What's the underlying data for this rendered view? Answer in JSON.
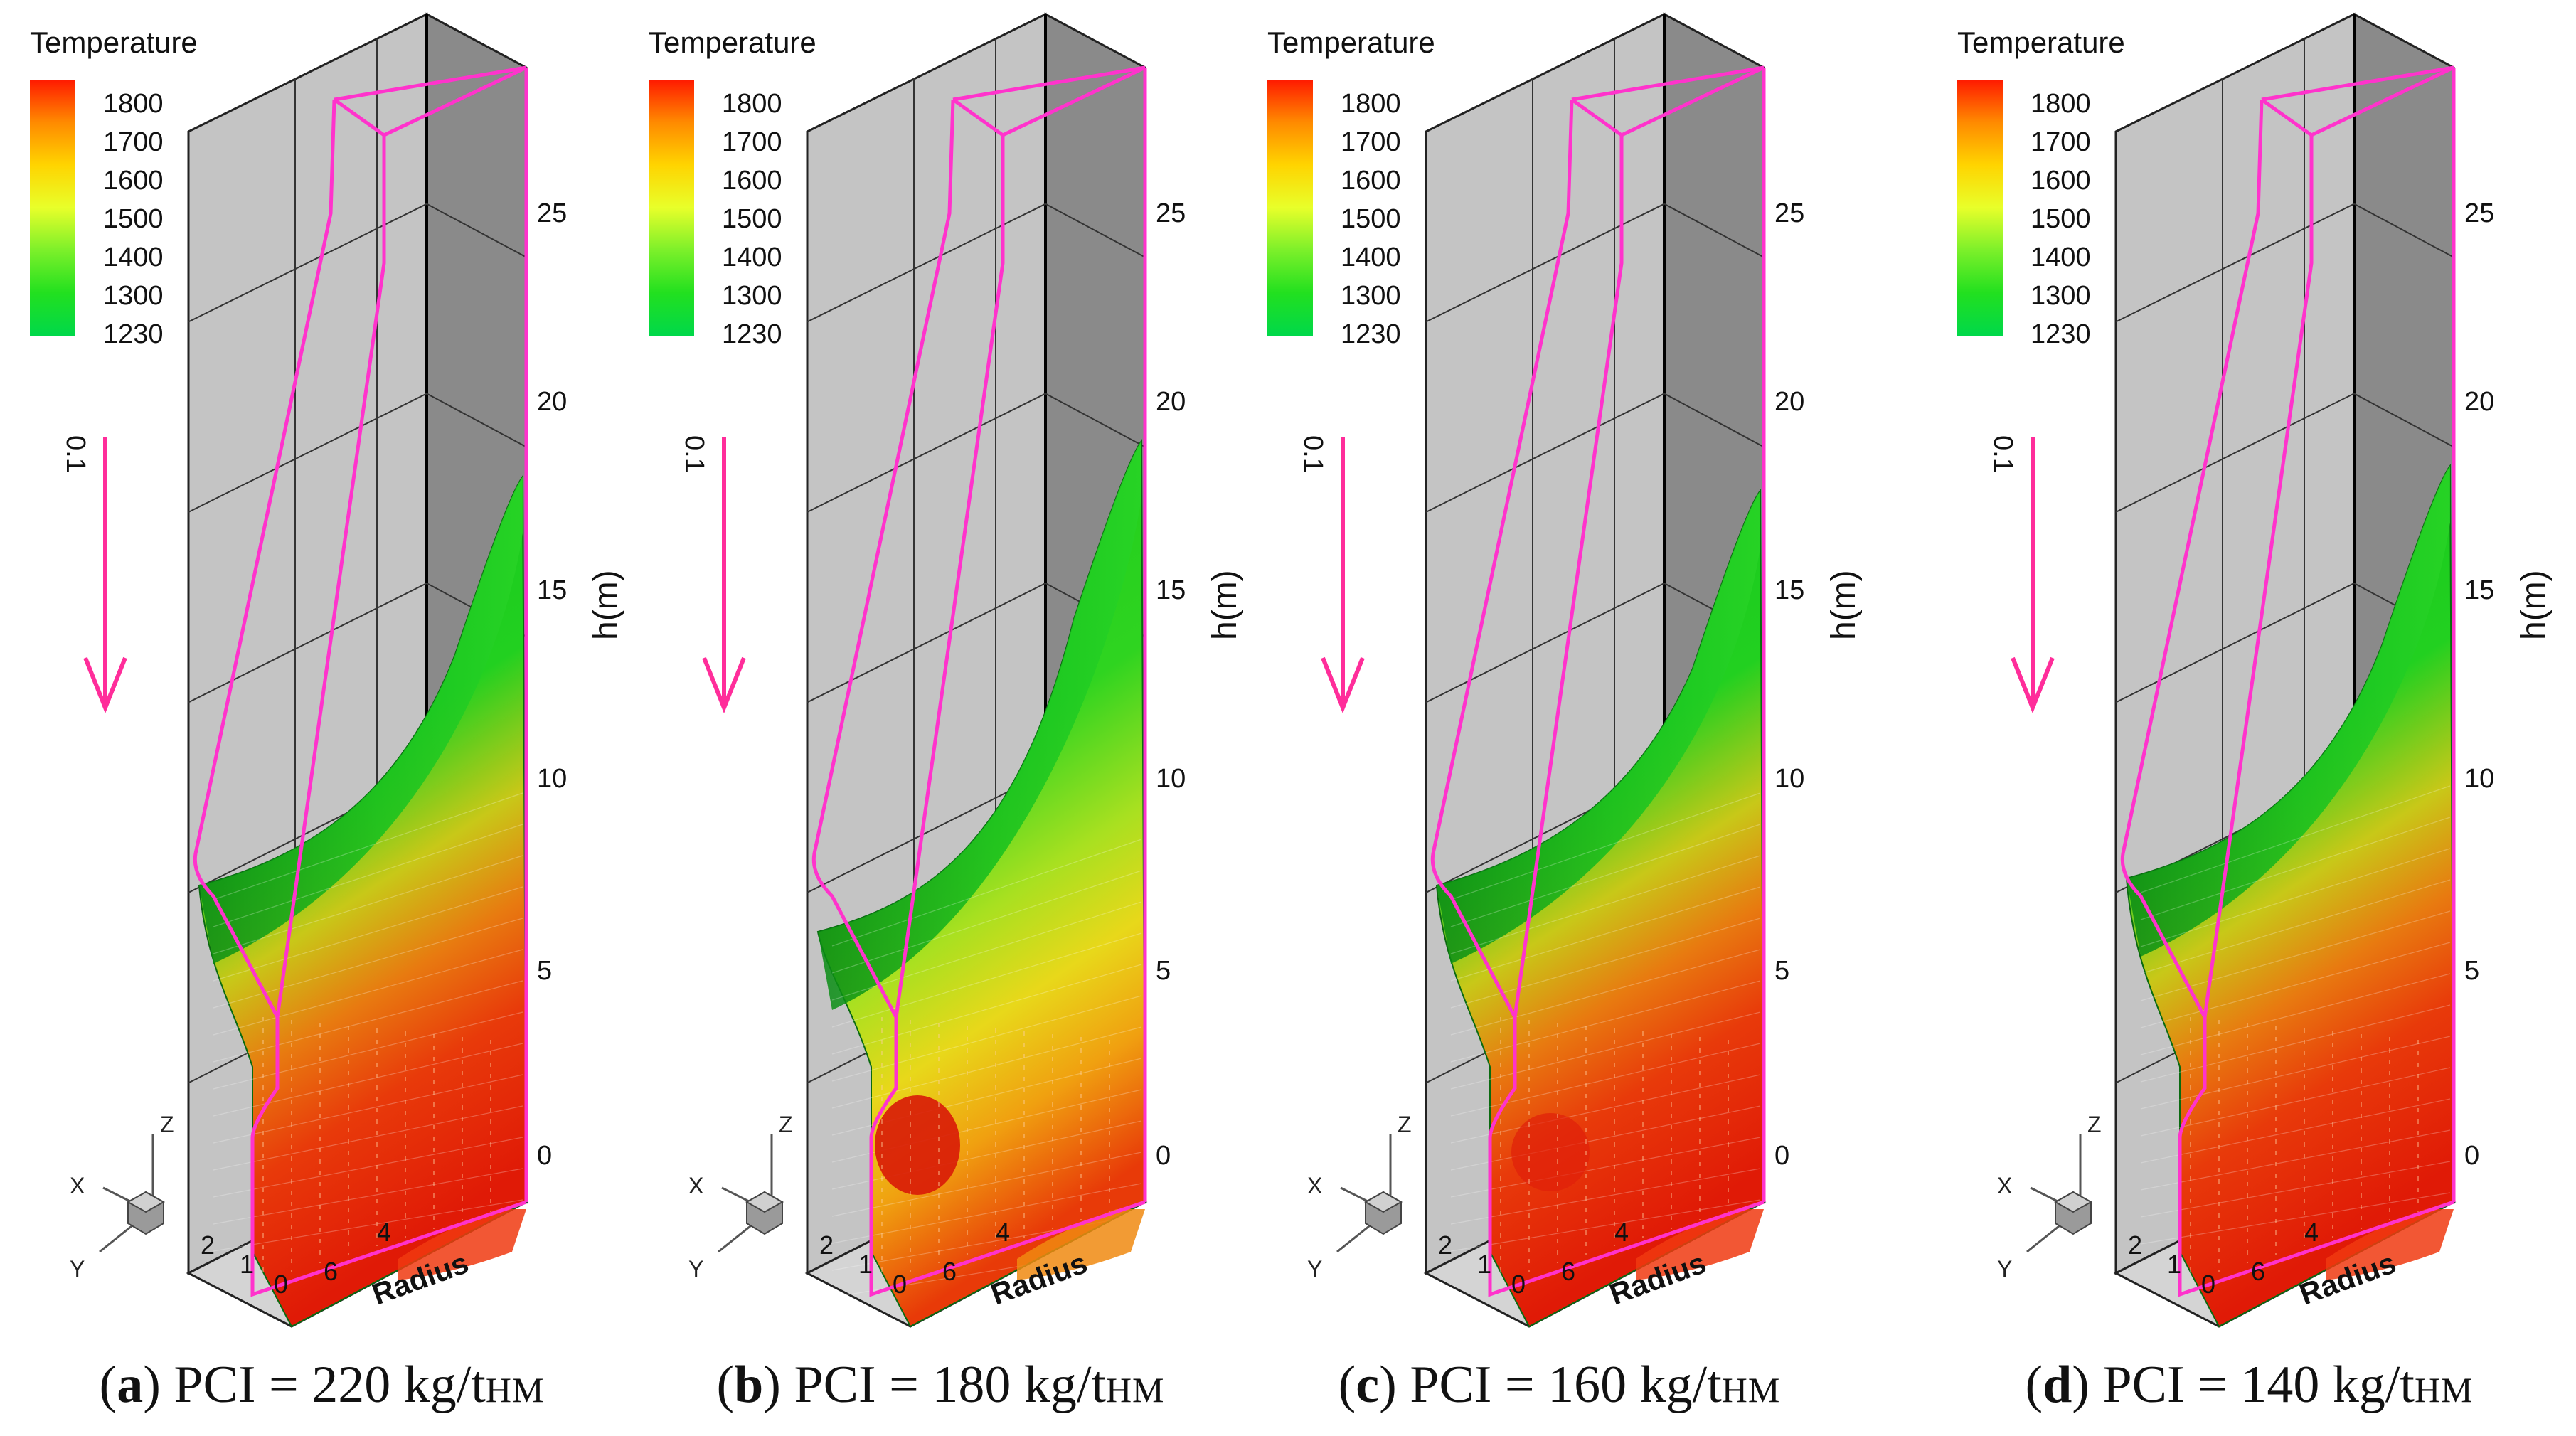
{
  "figure": {
    "panels": [
      {
        "letter": "a",
        "caption_text": "PCI = 220 kg/t",
        "caption_sub": "HM",
        "legend_title": "Temperature",
        "legend_ticks": [
          "1800",
          "1700",
          "1600",
          "1500",
          "1400",
          "1300",
          "1230"
        ],
        "arrow_label": "0.1",
        "axis_label": "h(m)",
        "radius_label": "Radius",
        "h_ticks": [
          "25",
          "20",
          "15",
          "10",
          "5",
          "0"
        ],
        "r_ticks": [
          "2",
          "1",
          "0",
          "6",
          "4"
        ],
        "triad": {
          "z": "Z",
          "x": "X",
          "y": "Y"
        }
      },
      {
        "letter": "b",
        "caption_text": "PCI = 180 kg/t",
        "caption_sub": "HM",
        "legend_title": "Temperature",
        "legend_ticks": [
          "1800",
          "1700",
          "1600",
          "1500",
          "1400",
          "1300",
          "1230"
        ],
        "arrow_label": "0.1",
        "axis_label": "h(m)",
        "radius_label": "Radius",
        "h_ticks": [
          "25",
          "20",
          "15",
          "10",
          "5",
          "0"
        ],
        "r_ticks": [
          "2",
          "1",
          "0",
          "6",
          "4"
        ],
        "triad": {
          "z": "Z",
          "x": "X",
          "y": "Y"
        }
      },
      {
        "letter": "c",
        "caption_text": "PCI = 160 kg/t",
        "caption_sub": "HM",
        "legend_title": "Temperature",
        "legend_ticks": [
          "1800",
          "1700",
          "1600",
          "1500",
          "1400",
          "1300",
          "1230"
        ],
        "arrow_label": "0.1",
        "axis_label": "h(m)",
        "radius_label": "Radius",
        "h_ticks": [
          "25",
          "20",
          "15",
          "10",
          "5",
          "0"
        ],
        "r_ticks": [
          "2",
          "1",
          "0",
          "6",
          "4"
        ],
        "triad": {
          "z": "Z",
          "x": "X",
          "y": "Y"
        }
      },
      {
        "letter": "d",
        "caption_text": "PCI = 140 kg/t",
        "caption_sub": "HM",
        "legend_title": "Temperature",
        "legend_ticks": [
          "1800",
          "1700",
          "1600",
          "1500",
          "1400",
          "1300",
          "1230"
        ],
        "arrow_label": "0.1",
        "axis_label": "h(m)",
        "radius_label": "Radius",
        "h_ticks": [
          "25",
          "20",
          "15",
          "10",
          "5",
          "0"
        ],
        "r_ticks": [
          "2",
          "1",
          "0",
          "6",
          "4"
        ],
        "triad": {
          "z": "Z",
          "x": "X",
          "y": "Y"
        }
      }
    ]
  },
  "chart_data": [
    {
      "type": "heatmap",
      "panel": "a",
      "pci_kg_per_thm": 220,
      "colorbar": {
        "min": 1230,
        "max": 1800,
        "ticks": [
          1800,
          1700,
          1600,
          1500,
          1400,
          1300,
          1230
        ],
        "colors": [
          "#ff1a00",
          "#ff8a00",
          "#ffd400",
          "#e8ff2a",
          "#7cf02a",
          "#22e01f",
          "#00d84a"
        ]
      },
      "h_axis": {
        "label": "h(m)",
        "ticks": [
          0,
          5,
          10,
          15,
          20,
          25
        ]
      },
      "cohesive_zone_top_h": 18.3,
      "cohesive_zone_root_h": 7.5,
      "colors": {
        "frame_line": "#ff33cc",
        "arrow": "#ff2d9a"
      }
    },
    {
      "type": "heatmap",
      "panel": "b",
      "pci_kg_per_thm": 180,
      "colorbar": {
        "min": 1230,
        "max": 1800,
        "ticks": [
          1800,
          1700,
          1600,
          1500,
          1400,
          1300,
          1230
        ],
        "colors": [
          "#ff1a00",
          "#ff8a00",
          "#ffd400",
          "#e8ff2a",
          "#7cf02a",
          "#22e01f",
          "#00d84a"
        ]
      },
      "h_axis": {
        "label": "h(m)",
        "ticks": [
          0,
          5,
          10,
          15,
          20,
          25
        ]
      },
      "cohesive_zone_top_h": 19.3,
      "cohesive_zone_root_h": 5.8,
      "colors": {
        "frame_line": "#ff33cc",
        "arrow": "#ff2d9a"
      }
    },
    {
      "type": "heatmap",
      "panel": "c",
      "pci_kg_per_thm": 160,
      "colorbar": {
        "min": 1230,
        "max": 1800,
        "ticks": [
          1800,
          1700,
          1600,
          1500,
          1400,
          1300,
          1230
        ],
        "colors": [
          "#ff1a00",
          "#ff8a00",
          "#ffd400",
          "#e8ff2a",
          "#7cf02a",
          "#22e01f",
          "#00d84a"
        ]
      },
      "h_axis": {
        "label": "h(m)",
        "ticks": [
          0,
          5,
          10,
          15,
          20,
          25
        ]
      },
      "cohesive_zone_top_h": 18.4,
      "cohesive_zone_root_h": 7.5,
      "colors": {
        "frame_line": "#ff33cc",
        "arrow": "#ff2d9a"
      }
    },
    {
      "type": "heatmap",
      "panel": "d",
      "pci_kg_per_thm": 140,
      "colorbar": {
        "min": 1230,
        "max": 1800,
        "ticks": [
          1800,
          1700,
          1600,
          1500,
          1400,
          1300,
          1230
        ],
        "colors": [
          "#ff1a00",
          "#ff8a00",
          "#ffd400",
          "#e8ff2a",
          "#7cf02a",
          "#22e01f",
          "#00d84a"
        ]
      },
      "h_axis": {
        "label": "h(m)",
        "ticks": [
          0,
          5,
          10,
          15,
          20,
          25
        ]
      },
      "cohesive_zone_top_h": 18.6,
      "cohesive_zone_root_h": 8.0,
      "colors": {
        "frame_line": "#ff33cc",
        "arrow": "#ff2d9a"
      }
    }
  ]
}
